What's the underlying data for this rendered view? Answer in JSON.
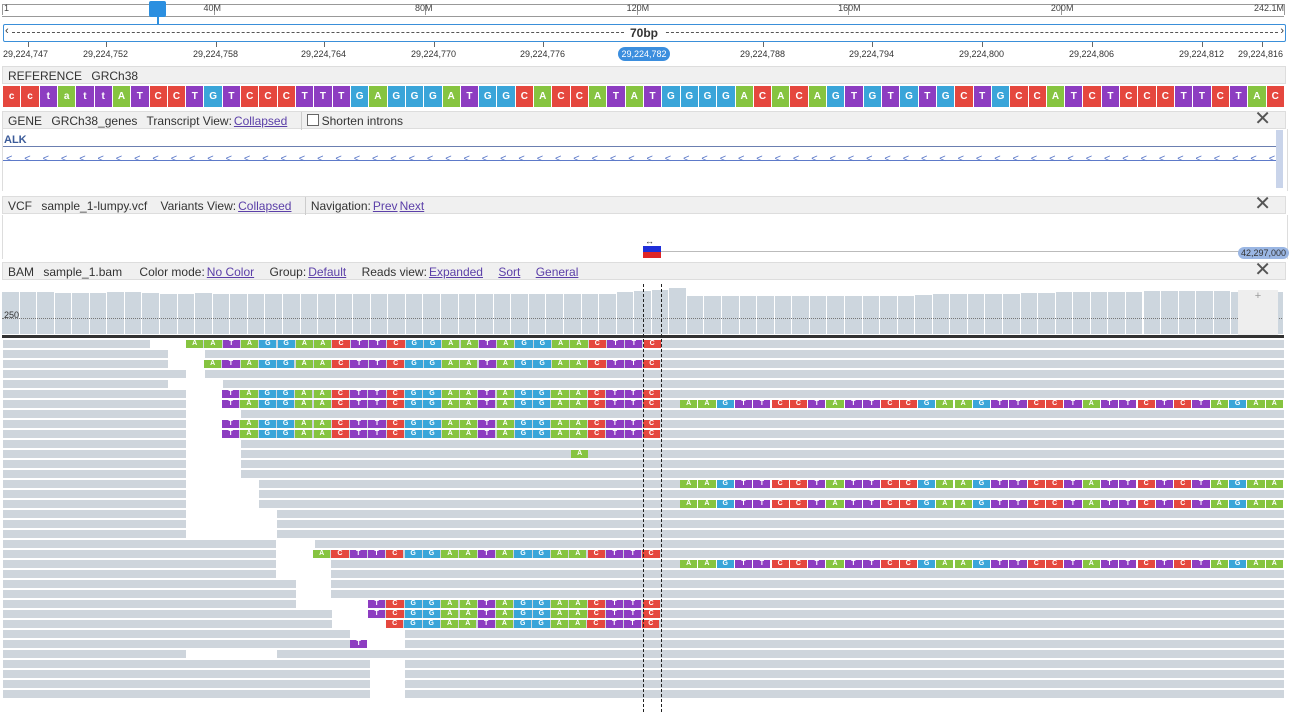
{
  "chromosome": {
    "labels": [
      {
        "text": "1",
        "pos": 0
      },
      {
        "text": "40M",
        "pos": 0.165
      },
      {
        "text": "80M",
        "pos": 0.33
      },
      {
        "text": "120M",
        "pos": 0.495
      },
      {
        "text": "160M",
        "pos": 0.66
      },
      {
        "text": "200M",
        "pos": 0.826
      },
      {
        "text": "242.1M",
        "pos": 1
      }
    ]
  },
  "span": {
    "label": "70bp"
  },
  "positions": [
    "29,224,747",
    "29,224,752",
    "29,224,758",
    "29,224,764",
    "29,224,770",
    "29,224,776",
    "29,224,788",
    "29,224,794",
    "29,224,800",
    "29,224,806",
    "29,224,812",
    "29,224,816"
  ],
  "center_position": "29,224,782",
  "reference": {
    "type_label": "REFERENCE",
    "name": "GRCh38",
    "sequence": "cctattATCCTGTCCCTTTGAGGGATGGCACCATATGGGGACACAGTGTGTGCTGCCATCTCCCTTCTAC"
  },
  "gene": {
    "type_label": "GENE",
    "name": "GRCh38_genes",
    "transcript_label": "Transcript View:",
    "transcript_value": "Collapsed",
    "shorten_label": "Shorten introns",
    "gene_name": "ALK",
    "chevron": "<"
  },
  "vcf": {
    "type_label": "VCF",
    "name": "sample_1-lumpy.vcf",
    "variants_label": "Variants View:",
    "variants_value": "Collapsed",
    "nav_label": "Navigation:",
    "prev": "Prev",
    "next": "Next",
    "arrow": "↔",
    "end_label": "42,297,000"
  },
  "bam": {
    "type_label": "BAM",
    "name": "sample_1.bam",
    "color_label": "Color mode:",
    "color_value": "No Color",
    "group_label": "Group:",
    "group_value": "Default",
    "reads_label": "Reads view:",
    "reads_value": "Expanded",
    "sort": "Sort",
    "general": "General",
    "coverage_label": "250",
    "plus": "+",
    "left_clip": "AATAGGAACTTCGGAATAGGAACTTC",
    "right_clip": "AAGTTCCTATTCCGAAGTTCCTATTCTCTAGAA",
    "single_A": "A",
    "single_T": "T"
  },
  "close_icon": "✕"
}
